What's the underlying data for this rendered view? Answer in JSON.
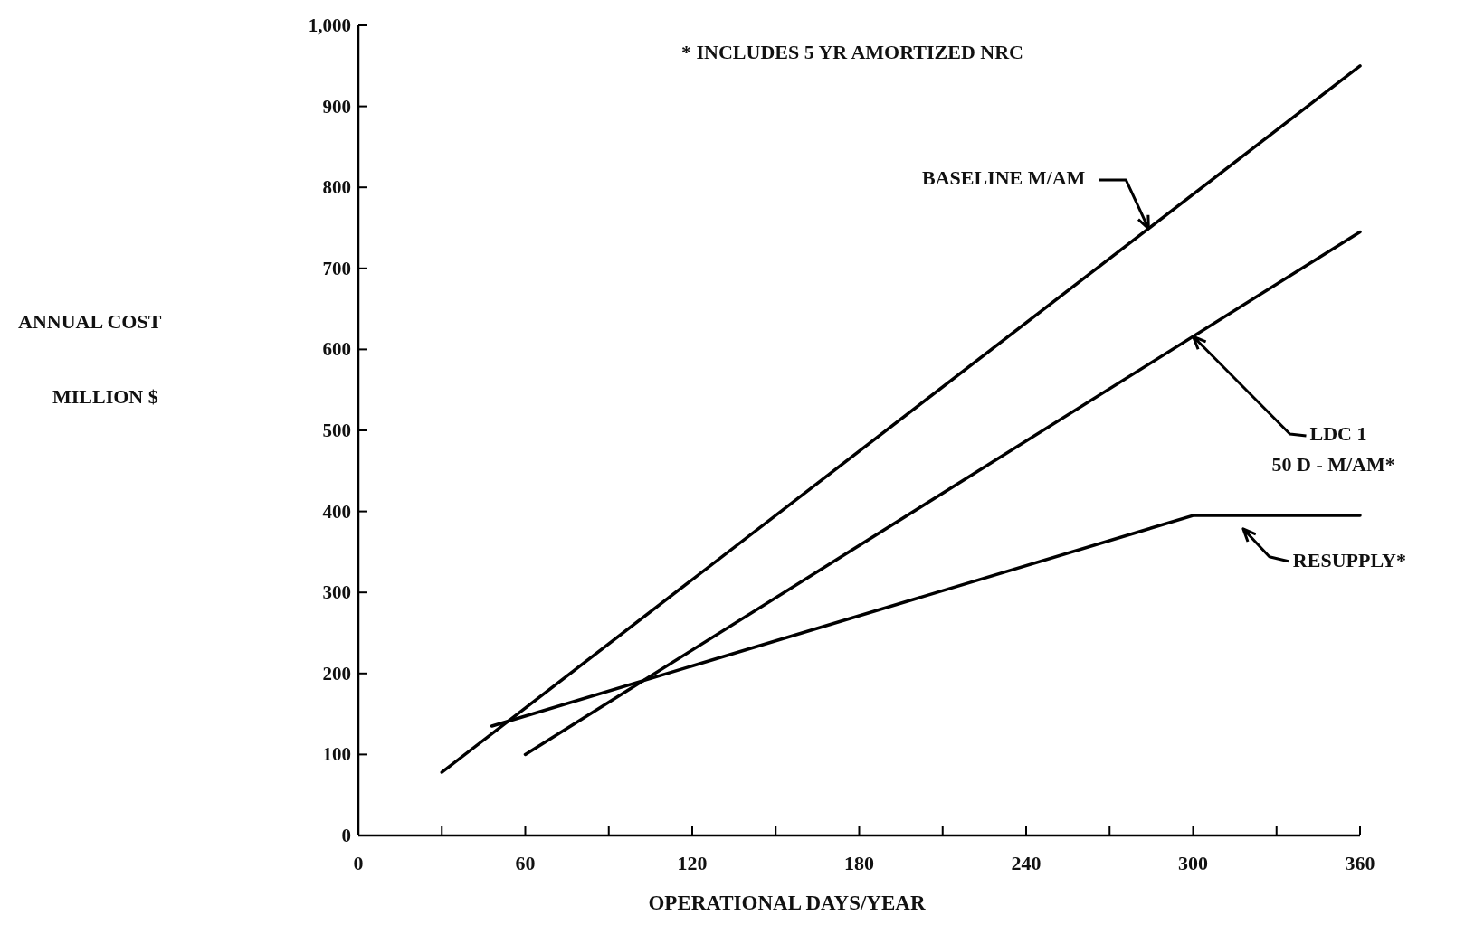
{
  "chart_data": {
    "type": "line",
    "xlabel": "OPERATIONAL DAYS/YEAR",
    "ylabel": "ANNUAL COST\n\nMILLION $",
    "xlim": [
      0,
      360
    ],
    "ylim": [
      0,
      1000
    ],
    "xticks": [
      0,
      {
        "value": 30,
        "label": null
      },
      60,
      {
        "value": 90,
        "label": null
      },
      120,
      {
        "value": 150,
        "label": null
      },
      180,
      {
        "value": 210,
        "label": null
      },
      240,
      {
        "value": 270,
        "label": null
      },
      300,
      {
        "value": 330,
        "label": null
      },
      360
    ],
    "yticks": [
      0,
      100,
      200,
      300,
      400,
      500,
      600,
      700,
      800,
      900,
      {
        "value": 1000,
        "label": "1,000"
      }
    ],
    "grid": false,
    "marker": "none",
    "line_style": "solid",
    "series": [
      {
        "color": "#000000",
        "x": [
          30,
          360
        ],
        "values": [
          78,
          950
        ]
      },
      {
        "color": "#000000",
        "x": [
          60,
          360
        ],
        "values": [
          100,
          745
        ]
      },
      {
        "color": "#000000",
        "x": [
          48,
          300,
          360
        ],
        "values": [
          135,
          395,
          395
        ]
      }
    ],
    "annotations": [
      "* INCLUDES 5 YR AMORTIZED NRC",
      {
        "text": "BASELINE M/AM",
        "x": 284,
        "y": 749
      },
      {
        "text": "LDC 1\n50 D - M/AM*",
        "x": 300,
        "y": 616
      },
      {
        "text": "RESUPPLY*",
        "x": 318,
        "y": 392
      }
    ]
  }
}
